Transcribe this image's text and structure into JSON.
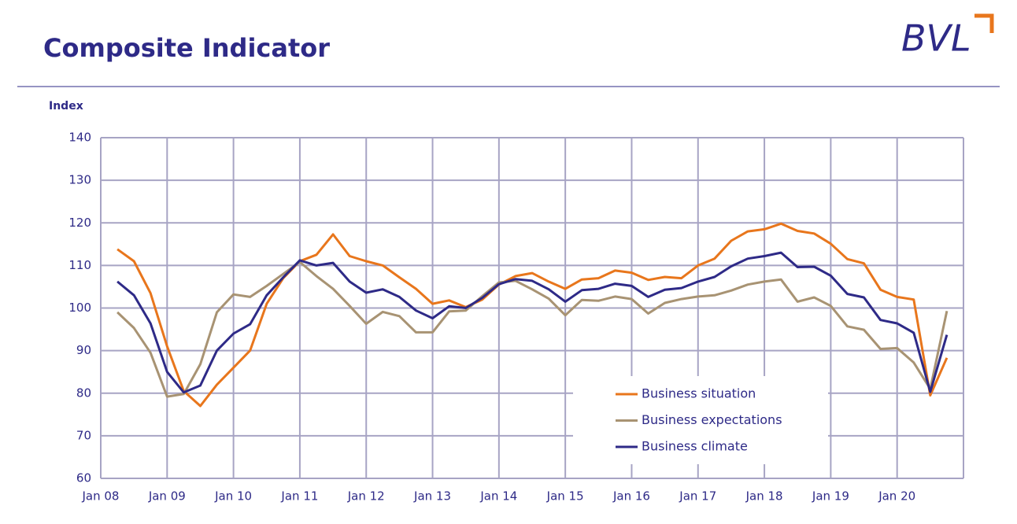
{
  "chart_data": {
    "type": "line",
    "title": "Composite Indicator",
    "logo": "BVL",
    "y_label": "Index",
    "x": [
      2008.25,
      2008.5,
      2008.75,
      2009,
      2009.25,
      2009.5,
      2009.75,
      2010,
      2010.25,
      2010.5,
      2010.75,
      2011,
      2011.25,
      2011.5,
      2011.75,
      2012,
      2012.25,
      2012.5,
      2012.75,
      2013,
      2013.25,
      2013.5,
      2013.75,
      2014,
      2014.25,
      2014.5,
      2014.75,
      2015,
      2015.25,
      2015.5,
      2015.75,
      2016,
      2016.25,
      2016.5,
      2016.75,
      2017,
      2017.25,
      2017.5,
      2017.75,
      2018,
      2018.25,
      2018.5,
      2018.75,
      2019,
      2019.25,
      2019.5,
      2019.75,
      2020,
      2020.25,
      2020.5,
      2020.75
    ],
    "series": [
      {
        "name": "Business situation",
        "color": "#e8761c",
        "values": [
          113.8,
          111,
          103.5,
          91,
          80.5,
          77,
          82,
          86,
          90,
          101,
          107,
          111,
          112.5,
          117.3,
          112.2,
          111,
          110,
          107.2,
          104.5,
          101,
          101.8,
          100.2,
          102,
          105.5,
          107.5,
          108.2,
          106.2,
          104.5,
          106.7,
          107,
          108.8,
          108.3,
          106.6,
          107.3,
          107,
          110,
          111.6,
          115.8,
          118,
          118.5,
          119.8,
          118.1,
          117.5,
          115.1,
          111.5,
          110.5,
          104.3,
          102.6,
          102,
          79.5,
          88.3
        ]
      },
      {
        "name": "Business expectations",
        "color": "#a89373",
        "values": [
          99,
          95.3,
          89.5,
          79.2,
          79.8,
          86.8,
          99,
          103.2,
          102.6,
          105.2,
          108,
          110.8,
          107.5,
          104.5,
          100.5,
          96.3,
          99.1,
          98.1,
          94.3,
          94.3,
          99.2,
          99.4,
          102.8,
          106,
          106.4,
          104.4,
          102.2,
          98.3,
          101.9,
          101.7,
          102.7,
          102.1,
          98.7,
          101.2,
          102.1,
          102.7,
          103,
          104.1,
          105.5,
          106.2,
          106.7,
          101.5,
          102.5,
          100.5,
          95.7,
          94.9,
          90.4,
          90.6,
          87.2,
          81,
          99.3
        ]
      },
      {
        "name": "Business climate",
        "color": "#2e2a87",
        "values": [
          106.2,
          103,
          96.4,
          85,
          80.2,
          81.8,
          90,
          94,
          96.2,
          103,
          107.2,
          111.2,
          110,
          110.6,
          106.2,
          103.6,
          104.4,
          102.6,
          99.4,
          97.6,
          100.4,
          100,
          102.4,
          105.6,
          106.8,
          106.4,
          104.4,
          101.5,
          104.2,
          104.5,
          105.7,
          105.2,
          102.6,
          104.3,
          104.7,
          106.2,
          107.3,
          109.8,
          111.6,
          112.2,
          113,
          109.6,
          109.7,
          107.6,
          103.3,
          102.5,
          97.2,
          96.4,
          94.2,
          80.3,
          93.7
        ]
      }
    ],
    "xlim": [
      2008,
      2021
    ],
    "xticks": [
      {
        "value": 2008,
        "label": "Jan 08"
      },
      {
        "value": 2009,
        "label": "Jan 09"
      },
      {
        "value": 2010,
        "label": "Jan 10"
      },
      {
        "value": 2011,
        "label": "Jan 11"
      },
      {
        "value": 2012,
        "label": "Jan 12"
      },
      {
        "value": 2013,
        "label": "Jan 13"
      },
      {
        "value": 2014,
        "label": "Jan 14"
      },
      {
        "value": 2015,
        "label": "Jan 15"
      },
      {
        "value": 2016,
        "label": "Jan 16"
      },
      {
        "value": 2017,
        "label": "Jan 17"
      },
      {
        "value": 2018,
        "label": "Jan 18"
      },
      {
        "value": 2019,
        "label": "Jan 19"
      },
      {
        "value": 2020,
        "label": "Jan 20"
      }
    ],
    "ylim": [
      60,
      140
    ],
    "yticks": [
      60,
      70,
      80,
      90,
      100,
      110,
      120,
      130,
      140
    ],
    "grid": true
  }
}
